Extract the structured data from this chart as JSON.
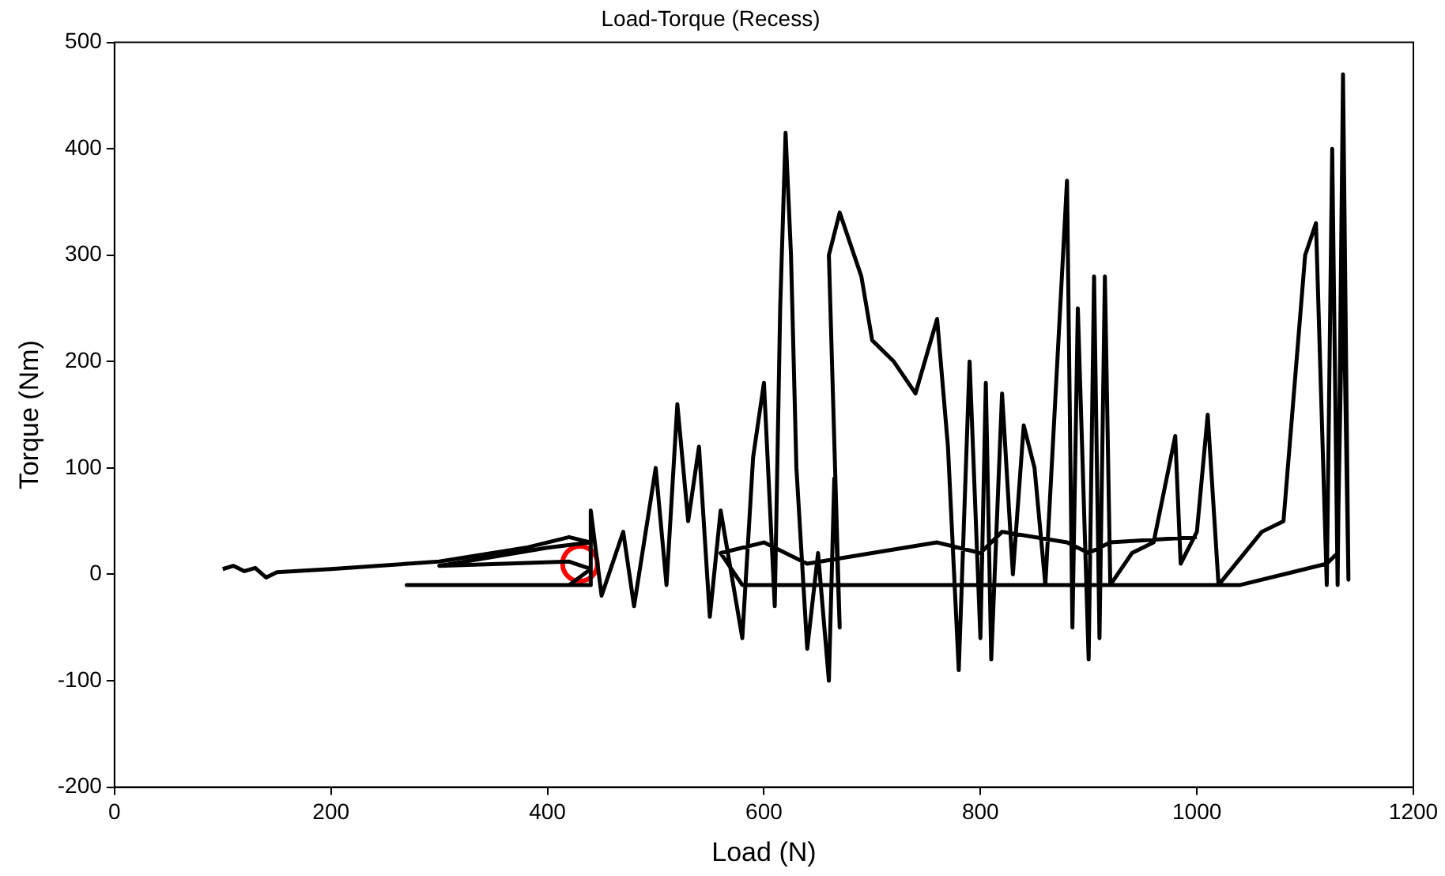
{
  "chart_data": {
    "type": "line",
    "title": "Load-Torque (Recess)",
    "xlabel": "Load (N)",
    "ylabel": "Torque (Nm)",
    "xlim": [
      0,
      1200
    ],
    "xticks": [
      0,
      200,
      400,
      600,
      800,
      1000,
      1200
    ],
    "ylim": [
      -200,
      500
    ],
    "yticks": [
      -200,
      -100,
      0,
      100,
      200,
      300,
      400,
      500
    ],
    "grid": false,
    "legend": false,
    "line_style": "solid",
    "series": [
      {
        "color": "#000000",
        "x": [
          100,
          110,
          120,
          130,
          140,
          150,
          200,
          300,
          380,
          420,
          440,
          400,
          300,
          420,
          440,
          420,
          270,
          440,
          440,
          450,
          470,
          480,
          500,
          510,
          520,
          530,
          540,
          550,
          560,
          580,
          590,
          600,
          610,
          615,
          620,
          625,
          630,
          640,
          650,
          660,
          665,
          670,
          660,
          670,
          690,
          700,
          720,
          740,
          760,
          770,
          780,
          790,
          800,
          805,
          810,
          820,
          830,
          840,
          850,
          860,
          880,
          885,
          890,
          900,
          905,
          910,
          915,
          920,
          940,
          960,
          980,
          985,
          1000,
          1010,
          1020,
          1060,
          1080,
          1100,
          1110,
          1120,
          1125,
          1130,
          1135,
          1140,
          1135,
          1130,
          1120,
          1080,
          1040,
          780,
          690,
          620,
          580,
          560,
          600,
          640,
          700,
          760,
          800,
          820,
          880,
          900,
          920,
          1000
        ],
        "values": [
          5,
          8,
          3,
          6,
          -3,
          2,
          5,
          12,
          25,
          35,
          30,
          25,
          8,
          12,
          5,
          -10,
          -10,
          -10,
          60,
          -20,
          40,
          -30,
          100,
          -10,
          160,
          50,
          120,
          -40,
          60,
          -60,
          110,
          180,
          -30,
          250,
          415,
          300,
          100,
          -70,
          20,
          -100,
          90,
          -50,
          300,
          340,
          280,
          220,
          200,
          170,
          240,
          120,
          -90,
          200,
          -60,
          180,
          -80,
          170,
          0,
          140,
          100,
          -10,
          370,
          -50,
          250,
          -80,
          280,
          -60,
          280,
          -10,
          20,
          30,
          130,
          10,
          40,
          150,
          -10,
          40,
          50,
          300,
          330,
          -10,
          400,
          -10,
          470,
          -5,
          300,
          20,
          10,
          0,
          -10,
          -10,
          -10,
          -10,
          -10,
          20,
          30,
          10,
          20,
          30,
          20,
          40,
          30,
          20,
          30,
          35
        ]
      },
      {
        "type": "scatter",
        "color": "#ff0000",
        "marker": "circle",
        "x": [
          430
        ],
        "values": [
          10
        ]
      }
    ]
  }
}
